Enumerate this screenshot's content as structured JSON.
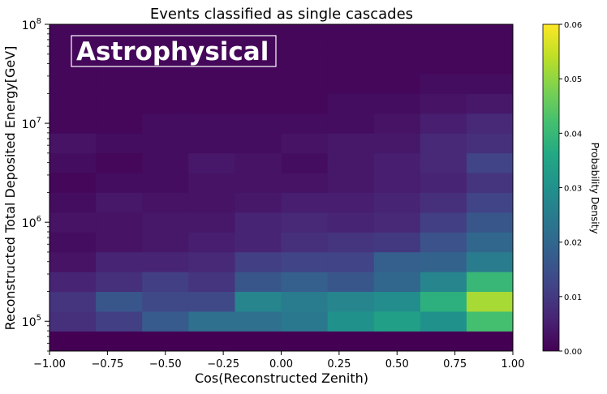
{
  "chart_data": {
    "type": "heatmap",
    "title": "Events classified as single cascades",
    "xlabel": "Cos(Reconstructed Zenith)",
    "ylabel": "Reconstructed Total Deposited Energy[GeV]",
    "colorbar_label": "Probability Density",
    "annotation": "Astrophysical",
    "x_edges": [
      -1.0,
      -0.8,
      -0.6,
      -0.4,
      -0.2,
      0.0,
      0.2,
      0.4,
      0.6,
      0.8,
      1.0
    ],
    "log10_y_edges": [
      4.7,
      4.9,
      5.1,
      5.3,
      5.5,
      5.7,
      5.9,
      6.1,
      6.3,
      6.5,
      6.7,
      6.9,
      7.1,
      7.3,
      7.5,
      7.7,
      7.9,
      8.1
    ],
    "xlim": [
      -1.0,
      1.0
    ],
    "ylim": [
      50000,
      100000000
    ],
    "yscale": "log",
    "x_ticks": [
      "−1.00",
      "−0.75",
      "−0.50",
      "−0.25",
      "0.00",
      "0.25",
      "0.50",
      "0.75",
      "1.00"
    ],
    "x_tick_values": [
      -1.0,
      -0.75,
      -0.5,
      -0.25,
      0.0,
      0.25,
      0.5,
      0.75,
      1.0
    ],
    "y_tick_exponents": [
      5,
      6,
      7,
      8
    ],
    "y_tick_base": "10",
    "colorbar_ticks": [
      "0.00",
      "0.01",
      "0.02",
      "0.03",
      "0.04",
      "0.05",
      "0.06"
    ],
    "colorbar_tick_values": [
      0.0,
      0.01,
      0.02,
      0.03,
      0.04,
      0.05,
      0.06
    ],
    "vmin": 0.0,
    "vmax": 0.06,
    "colormap": "viridis",
    "values": [
      [
        0.0,
        0.0,
        0.0,
        0.0,
        0.0,
        0.0,
        0.0,
        0.0,
        0.0,
        0.0
      ],
      [
        0.008,
        0.011,
        0.017,
        0.022,
        0.022,
        0.024,
        0.03,
        0.034,
        0.03,
        0.042
      ],
      [
        0.009,
        0.016,
        0.013,
        0.013,
        0.027,
        0.025,
        0.027,
        0.029,
        0.038,
        0.052
      ],
      [
        0.006,
        0.008,
        0.011,
        0.009,
        0.016,
        0.018,
        0.016,
        0.02,
        0.027,
        0.04
      ],
      [
        0.003,
        0.006,
        0.006,
        0.007,
        0.011,
        0.012,
        0.012,
        0.018,
        0.019,
        0.025
      ],
      [
        0.002,
        0.003,
        0.004,
        0.005,
        0.006,
        0.008,
        0.009,
        0.01,
        0.015,
        0.02
      ],
      [
        0.003,
        0.003,
        0.004,
        0.004,
        0.006,
        0.007,
        0.006,
        0.007,
        0.011,
        0.016
      ],
      [
        0.002,
        0.004,
        0.003,
        0.003,
        0.004,
        0.005,
        0.005,
        0.006,
        0.008,
        0.012
      ],
      [
        0.001,
        0.002,
        0.002,
        0.003,
        0.003,
        0.003,
        0.004,
        0.005,
        0.006,
        0.009
      ],
      [
        0.002,
        0.001,
        0.002,
        0.004,
        0.003,
        0.002,
        0.004,
        0.005,
        0.007,
        0.012
      ],
      [
        0.003,
        0.002,
        0.002,
        0.002,
        0.002,
        0.003,
        0.004,
        0.004,
        0.007,
        0.008
      ],
      [
        0.001,
        0.001,
        0.002,
        0.002,
        0.002,
        0.002,
        0.002,
        0.003,
        0.005,
        0.007
      ],
      [
        0.001,
        0.001,
        0.001,
        0.001,
        0.001,
        0.001,
        0.002,
        0.002,
        0.003,
        0.004
      ],
      [
        0.001,
        0.001,
        0.001,
        0.001,
        0.001,
        0.001,
        0.001,
        0.001,
        0.002,
        0.002
      ],
      [
        0.001,
        0.001,
        0.001,
        0.001,
        0.001,
        0.001,
        0.001,
        0.001,
        0.001,
        0.001
      ],
      [
        0.001,
        0.001,
        0.001,
        0.001,
        0.001,
        0.001,
        0.001,
        0.001,
        0.001,
        0.001
      ],
      [
        0.001,
        0.001,
        0.001,
        0.001,
        0.001,
        0.001,
        0.001,
        0.001,
        0.001,
        0.001
      ]
    ]
  }
}
